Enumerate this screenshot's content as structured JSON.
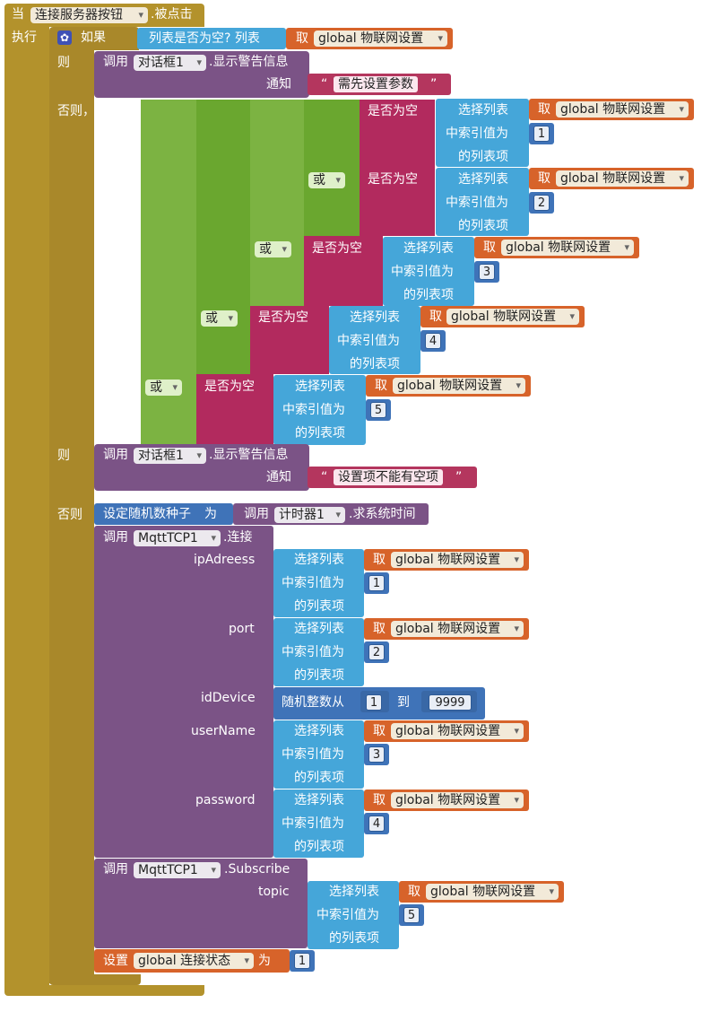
{
  "event": {
    "prefix": "当",
    "component": "连接服务器按钮",
    "suffix": ".被点击",
    "do_label": "执行"
  },
  "if_block": {
    "if_label": "如果",
    "then_label": "则",
    "else_if_label": "否则，如果",
    "else_label": "否则",
    "gear_icon": "gear-icon"
  },
  "is_list_empty": {
    "label": "列表是否为空? 列表"
  },
  "global_get": {
    "label": "取",
    "var": "global 物联网设置"
  },
  "dialog_call_1": {
    "call": "调用",
    "component": "对话框1",
    "method": ".显示警告信息",
    "param": "通知",
    "message": "需先设置参数"
  },
  "dialog_call_2": {
    "call": "调用",
    "component": "对话框1",
    "method": ".显示警告信息",
    "param": "通知",
    "message": "设置项不能有空项"
  },
  "conditions": {
    "or_label": "或",
    "is_empty_label": "是否为空",
    "select_label_1": "选择列表",
    "select_label_2": "中索引值为",
    "select_label_3": "的列表项",
    "indices": [
      "1",
      "2",
      "3",
      "4",
      "5"
    ]
  },
  "seed": {
    "label": "设定随机数种子",
    "as": "为",
    "call": "调用",
    "component": "计时器1",
    "method": ".求系统时间"
  },
  "mqtt_connect": {
    "call": "调用",
    "component": "MqttTCP1",
    "method": ".连接",
    "params": [
      "ipAdreess",
      "port",
      "idDevice",
      "userName",
      "password"
    ],
    "indices": [
      "1",
      "2",
      "3",
      "4"
    ],
    "random_label": "随机整数从",
    "random_to": "到",
    "random_from_value": "1",
    "random_to_value": "9999"
  },
  "mqtt_subscribe": {
    "call": "调用",
    "component": "MqttTCP1",
    "method": ".Subscribe",
    "param": "topic",
    "index": "5"
  },
  "set_state": {
    "set": "设置",
    "var": "global 连接状态",
    "to": "为",
    "value": "1"
  },
  "colors": {
    "control": "#b3922c",
    "logic": "#7cb342",
    "is_empty": "#b22a5e",
    "lists": "#45a6d9",
    "global": "#d7632a",
    "component": "#7b5386",
    "math": "#3f73b8"
  }
}
